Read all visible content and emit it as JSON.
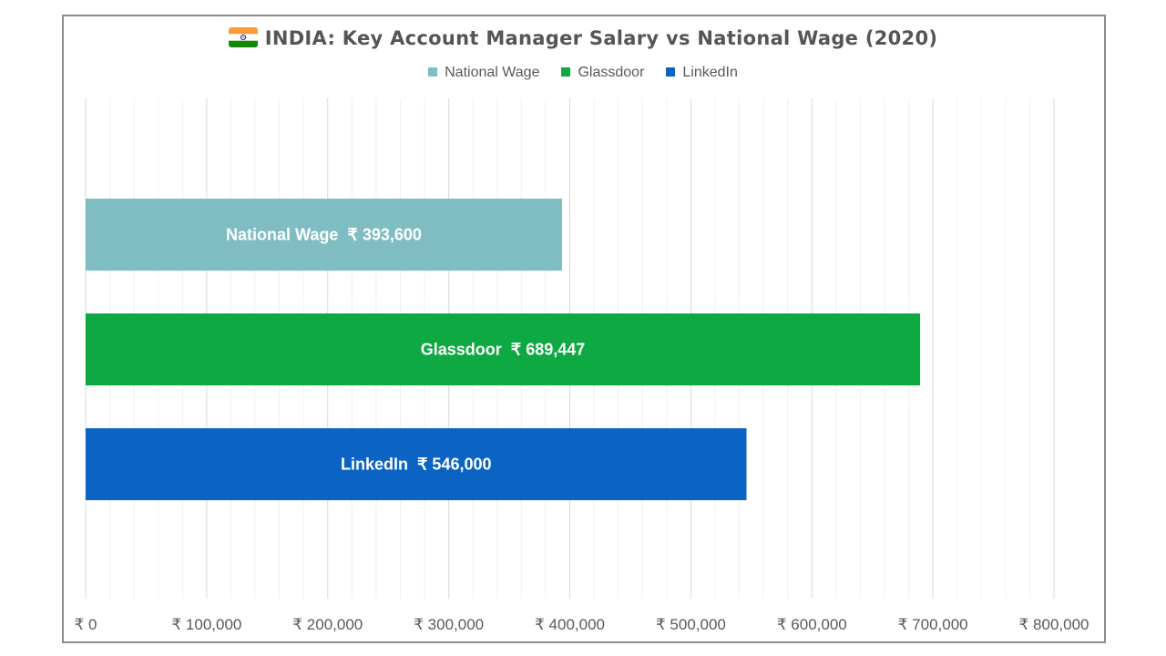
{
  "chart_data": {
    "type": "bar",
    "orientation": "horizontal",
    "title": "INDIA: Key Account Manager Salary vs National Wage (2020)",
    "categories": [
      "National Wage",
      "Glassdoor",
      "LinkedIn"
    ],
    "values": [
      393600,
      689447,
      546000
    ],
    "data_labels": [
      "National Wage  ₹ 393,600",
      "Glassdoor  ₹ 689,447",
      "LinkedIn  ₹ 546,000"
    ],
    "colors": [
      "#80bdc3",
      "#0ea942",
      "#0b64c3"
    ],
    "legend": [
      "National Wage",
      "Glassdoor",
      "LinkedIn"
    ],
    "legend_position": "top",
    "xlim": [
      0,
      800000
    ],
    "x_ticks": [
      0,
      100000,
      200000,
      300000,
      400000,
      500000,
      600000,
      700000,
      800000
    ],
    "x_tick_labels": [
      "₹ 0",
      "₹ 100,000",
      "₹ 200,000",
      "₹ 300,000",
      "₹ 400,000",
      "₹ 500,000",
      "₹ 600,000",
      "₹ 700,000",
      "₹ 800,000"
    ],
    "minor_tick_step": 20000,
    "grid": true,
    "xlabel": "",
    "ylabel": ""
  },
  "icons": {
    "flag": "india-flag-icon"
  }
}
